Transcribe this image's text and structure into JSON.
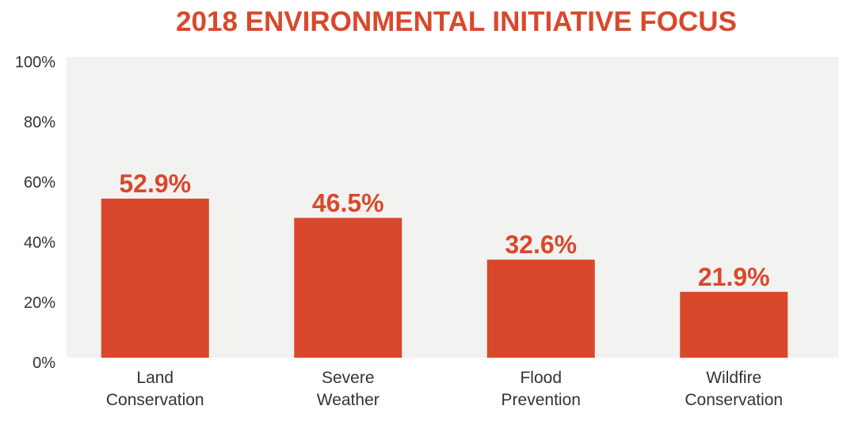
{
  "chart_data": {
    "type": "bar",
    "title": "2018 ENVIRONMENTAL INITIATIVE FOCUS",
    "categories": [
      [
        "Land",
        "Conservation"
      ],
      [
        "Severe",
        "Weather"
      ],
      [
        "Flood",
        "Prevention"
      ],
      [
        "Wildfire",
        "Conservation"
      ]
    ],
    "values": [
      52.9,
      46.5,
      32.6,
      21.9
    ],
    "value_labels": [
      "52.9%",
      "46.5%",
      "32.6%",
      "21.9%"
    ],
    "ylim": [
      0,
      100
    ],
    "yticks": [
      0,
      20,
      40,
      60,
      80,
      100
    ],
    "ytick_labels": [
      "0%",
      "20%",
      "40%",
      "60%",
      "80%",
      "100%"
    ],
    "xlabel": "",
    "ylabel": "",
    "grid": false,
    "colors": {
      "bar": "#d9482b",
      "plot_background": "#f2f2f0",
      "title": "#d9482b",
      "text": "#333333"
    }
  }
}
